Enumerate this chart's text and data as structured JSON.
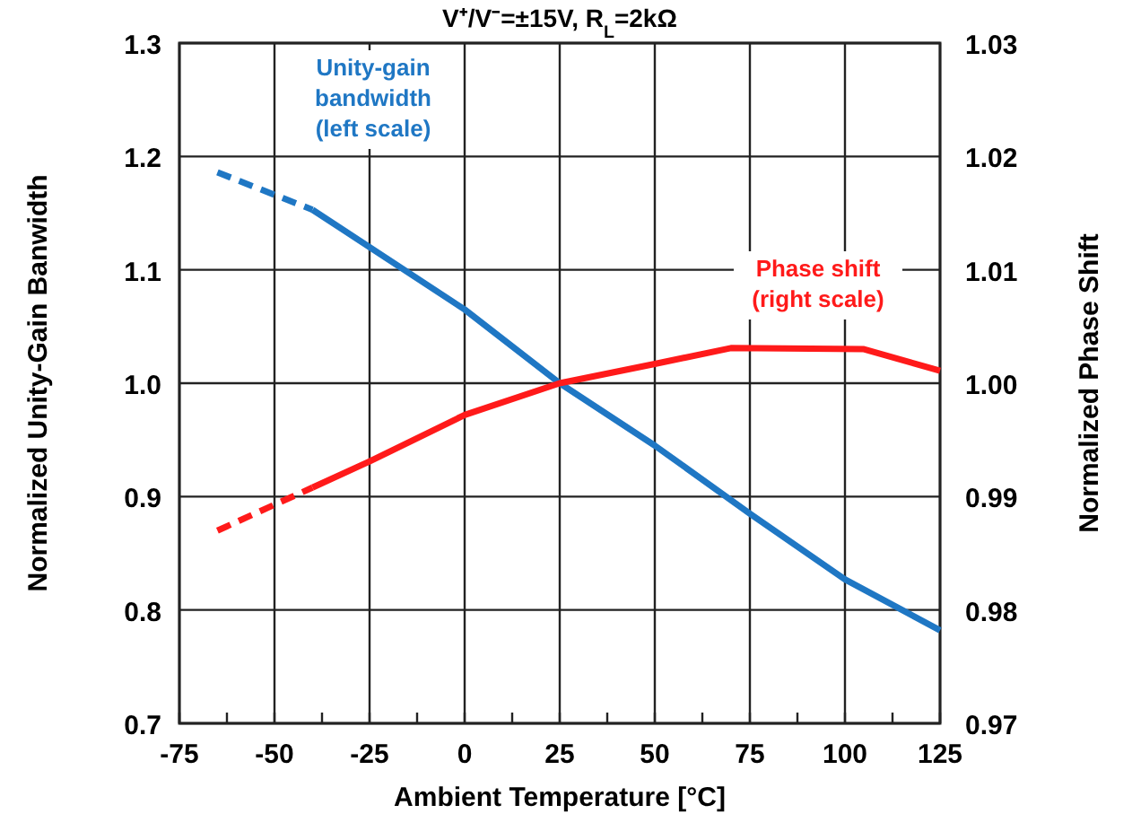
{
  "chart_data": {
    "type": "line",
    "title": "V⁺/V⁻=±15V, R$_{L}$=2kΩ",
    "xlabel": "Ambient Temperature [°C]",
    "ylabel": "Normalized Unity-Gain Banwidth",
    "y2label": "Normalized Phase Shift",
    "xlim": [
      -75,
      125
    ],
    "xticks": [
      -75,
      {
        "value": -62.5,
        "label": null
      },
      -50,
      {
        "value": -37.5,
        "label": null
      },
      -25,
      {
        "value": -12.5,
        "label": null
      },
      0,
      {
        "value": 12.5,
        "label": null
      },
      25,
      {
        "value": 37.5,
        "label": null
      },
      50,
      {
        "value": 62.5,
        "label": null
      },
      75,
      {
        "value": 87.5,
        "label": null
      },
      100,
      {
        "value": 112.5,
        "label": null
      },
      125
    ],
    "ylim": [
      0.7,
      1.3
    ],
    "yticks": [
      0.7,
      0.8,
      0.9,
      {
        "value": 1,
        "label": "1.0"
      },
      1.1,
      1.2,
      1.3
    ],
    "y2lim": [
      0.97,
      1.03
    ],
    "y2ticks": [
      0.97,
      0.98,
      0.99,
      {
        "value": 1,
        "label": "1.00"
      },
      1.01,
      1.02,
      1.03
    ],
    "grid": true,
    "series": [
      {
        "name": "Unity-gain bandwidth (left scale)",
        "color": "#1f77c4",
        "x": [
          -40,
          0,
          25,
          50,
          75,
          100,
          125
        ],
        "values": [
          1.153,
          1.065,
          1.0,
          0.945,
          0.885,
          0.827,
          0.782
        ]
      },
      {
        "color": "#1f77c4",
        "line_style": "dashed",
        "x": [
          -65,
          -40
        ],
        "values": [
          1.186,
          1.153
        ]
      },
      {
        "name": "Phase shift (right scale)",
        "color": "#ff1a1a",
        "axis": "y2",
        "x": [
          -40,
          -25,
          0,
          25,
          50,
          70,
          105,
          125
        ],
        "values": [
          0.9908,
          0.9931,
          0.9972,
          1.0,
          1.0017,
          1.0031,
          1.003,
          1.0011
        ]
      },
      {
        "color": "#ff1a1a",
        "axis": "y2",
        "line_style": "dashed",
        "x": [
          -65,
          -40
        ],
        "values": [
          0.987,
          0.9908
        ]
      }
    ]
  }
}
